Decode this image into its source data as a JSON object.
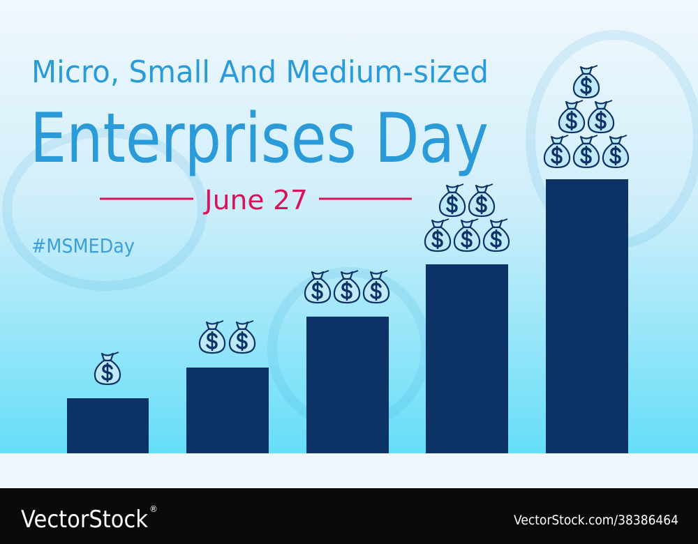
{
  "header": {
    "title_line1": "Micro, Small And Medium-sized",
    "title_line2": "Enterprises Day",
    "date": "June 27",
    "hashtag": "#MSMEDay"
  },
  "footer": {
    "brand": "VectorStock",
    "registered": "®",
    "id": "VectorStock.com/38386464"
  }
}
